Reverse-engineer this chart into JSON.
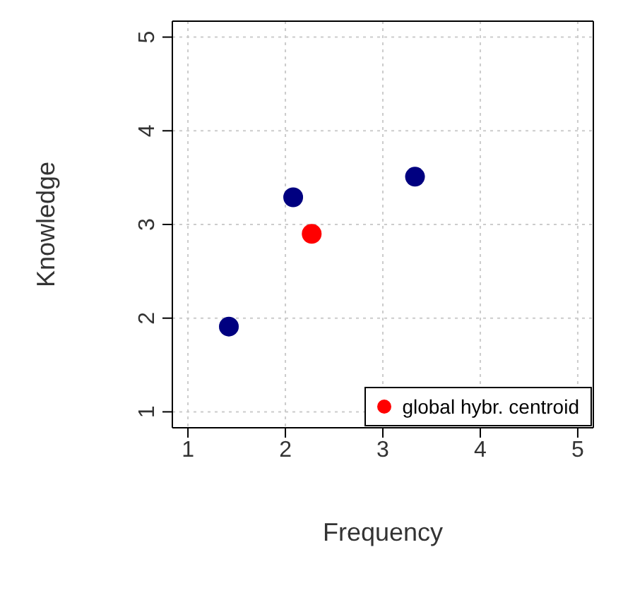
{
  "chart_data": {
    "type": "scatter",
    "xlabel": "Frequency",
    "ylabel": "Knowledge",
    "xlim": [
      0.84,
      5.16
    ],
    "ylim": [
      0.83,
      5.17
    ],
    "xticks": [
      1,
      2,
      3,
      4,
      5
    ],
    "yticks": [
      1,
      2,
      3,
      4,
      5
    ],
    "grid": true,
    "legend": "bottom right",
    "marker": "circle",
    "series": [
      {
        "color": "#000080",
        "x": [
          1.42,
          2.08,
          3.33
        ],
        "values": [
          1.91,
          3.29,
          3.51
        ]
      },
      {
        "name": "global hybr. centroid",
        "color": "#ff0000",
        "x": [
          2.27
        ],
        "values": [
          2.9
        ]
      }
    ]
  }
}
